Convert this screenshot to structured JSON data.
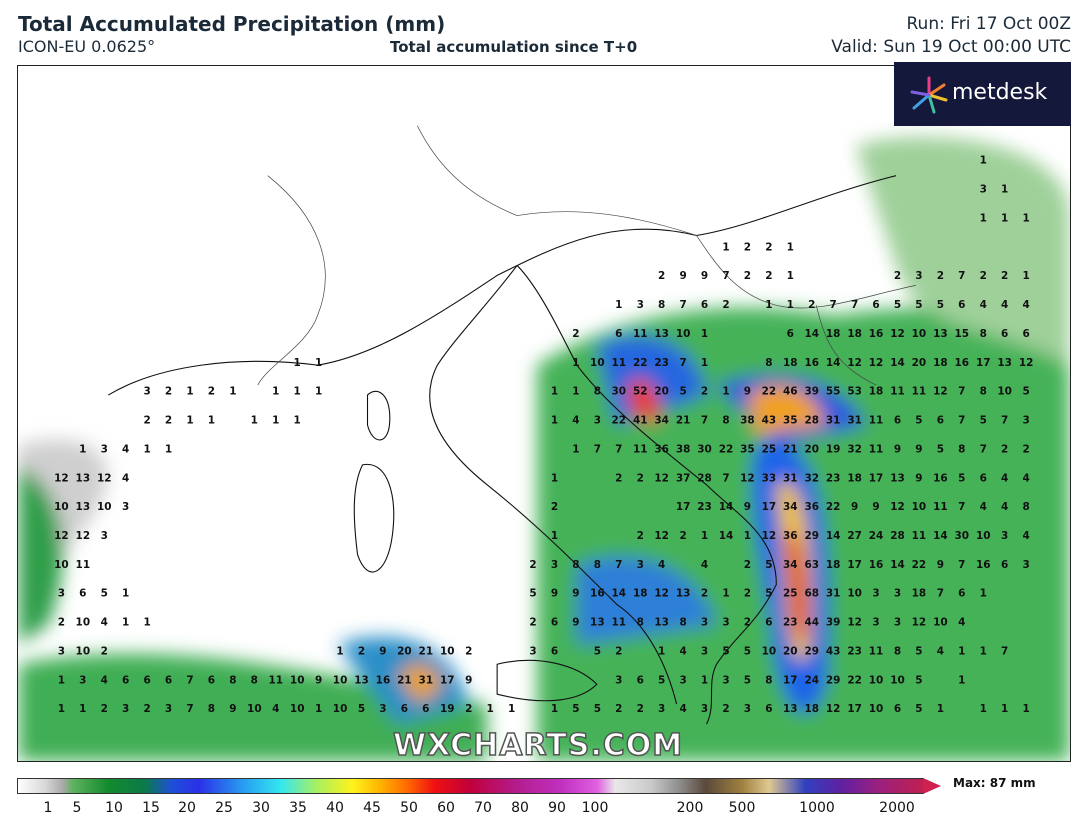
{
  "header": {
    "title": "Total Accumulated Precipitation (mm)",
    "model": "ICON-EU 0.0625°",
    "subtitle": "Total accumulation since T+0",
    "run": "Run: Fri 17 Oct 00Z",
    "valid": "Valid: Sun 19 Oct 00:00 UTC"
  },
  "logo": "metdesk",
  "watermark": "WXCHARTS.COM",
  "legend": {
    "labels": [
      1,
      5,
      10,
      15,
      20,
      25,
      30,
      35,
      40,
      45,
      50,
      60,
      70,
      80,
      90,
      100,
      200,
      500,
      1000,
      2000
    ],
    "max_label": "Max: 87 mm"
  },
  "grid": {
    "rows": [
      [
        null,
        null,
        null,
        null,
        null,
        null,
        null,
        null,
        null,
        null,
        null,
        null,
        null,
        null,
        null,
        null,
        null,
        null,
        null,
        null,
        null,
        null,
        null,
        null,
        null,
        null,
        null,
        null,
        null,
        null,
        null,
        null,
        null,
        null,
        null,
        null,
        null,
        null,
        null,
        null,
        null,
        null,
        null,
        1,
        null,
        null
      ],
      [
        null,
        null,
        null,
        null,
        null,
        null,
        null,
        null,
        null,
        null,
        null,
        null,
        null,
        null,
        null,
        null,
        null,
        null,
        null,
        null,
        null,
        null,
        null,
        null,
        null,
        null,
        null,
        null,
        null,
        null,
        null,
        null,
        null,
        null,
        null,
        null,
        null,
        null,
        null,
        null,
        null,
        null,
        null,
        3,
        1,
        null
      ],
      [
        null,
        null,
        null,
        null,
        null,
        null,
        null,
        null,
        null,
        null,
        null,
        null,
        null,
        null,
        null,
        null,
        null,
        null,
        null,
        null,
        null,
        null,
        null,
        null,
        null,
        null,
        null,
        null,
        null,
        null,
        null,
        null,
        null,
        null,
        null,
        null,
        null,
        null,
        null,
        null,
        null,
        null,
        null,
        1,
        1,
        1
      ],
      [
        null,
        null,
        null,
        null,
        null,
        null,
        null,
        null,
        null,
        null,
        null,
        null,
        null,
        null,
        null,
        null,
        null,
        null,
        null,
        null,
        null,
        null,
        null,
        null,
        null,
        null,
        null,
        null,
        null,
        null,
        null,
        1,
        2,
        2,
        1,
        null,
        null,
        null,
        null,
        null,
        null,
        null,
        null,
        null,
        null,
        null
      ],
      [
        null,
        null,
        null,
        null,
        null,
        null,
        null,
        null,
        null,
        null,
        null,
        null,
        null,
        null,
        null,
        null,
        null,
        null,
        null,
        null,
        null,
        null,
        null,
        null,
        null,
        null,
        null,
        null,
        2,
        9,
        9,
        7,
        2,
        2,
        1,
        null,
        null,
        null,
        null,
        2,
        3,
        2,
        7,
        2,
        2,
        1
      ],
      [
        null,
        null,
        null,
        null,
        null,
        null,
        null,
        null,
        null,
        null,
        null,
        null,
        null,
        null,
        null,
        null,
        null,
        null,
        null,
        null,
        null,
        null,
        null,
        null,
        null,
        null,
        1,
        3,
        8,
        7,
        6,
        2,
        null,
        1,
        1,
        2,
        7,
        7,
        6,
        5,
        5,
        5,
        6,
        4,
        4,
        4
      ],
      [
        null,
        null,
        null,
        null,
        null,
        null,
        null,
        null,
        null,
        null,
        null,
        null,
        null,
        null,
        null,
        null,
        null,
        null,
        null,
        null,
        null,
        null,
        null,
        null,
        2,
        null,
        6,
        11,
        13,
        10,
        1,
        null,
        null,
        null,
        6,
        14,
        18,
        18,
        16,
        12,
        10,
        13,
        15,
        8,
        6,
        6
      ],
      [
        null,
        null,
        null,
        null,
        null,
        null,
        null,
        null,
        null,
        null,
        null,
        1,
        1,
        null,
        null,
        null,
        null,
        null,
        null,
        null,
        null,
        null,
        null,
        null,
        1,
        10,
        11,
        22,
        23,
        7,
        1,
        null,
        null,
        8,
        18,
        16,
        14,
        12,
        12,
        14,
        20,
        18,
        16,
        17,
        13,
        12
      ],
      [
        null,
        null,
        null,
        null,
        3,
        2,
        1,
        2,
        1,
        null,
        1,
        1,
        1,
        null,
        null,
        null,
        null,
        null,
        null,
        null,
        null,
        null,
        null,
        1,
        1,
        8,
        30,
        52,
        20,
        5,
        2,
        1,
        9,
        22,
        46,
        39,
        55,
        53,
        18,
        11,
        11,
        12,
        7,
        8,
        10,
        5
      ],
      [
        null,
        null,
        null,
        null,
        2,
        2,
        1,
        1,
        null,
        1,
        1,
        1,
        null,
        null,
        null,
        null,
        null,
        null,
        null,
        null,
        null,
        null,
        null,
        1,
        4,
        3,
        22,
        41,
        34,
        21,
        7,
        8,
        38,
        43,
        35,
        28,
        31,
        31,
        11,
        6,
        5,
        6,
        7,
        5,
        7,
        3
      ],
      [
        null,
        1,
        3,
        4,
        1,
        1,
        null,
        null,
        null,
        null,
        null,
        null,
        null,
        null,
        null,
        null,
        null,
        null,
        null,
        null,
        null,
        null,
        null,
        null,
        1,
        7,
        7,
        11,
        36,
        38,
        30,
        22,
        35,
        25,
        21,
        20,
        19,
        32,
        11,
        9,
        9,
        5,
        8,
        7,
        2,
        2
      ],
      [
        12,
        13,
        12,
        4,
        null,
        null,
        null,
        null,
        null,
        null,
        null,
        null,
        null,
        null,
        null,
        null,
        null,
        null,
        null,
        null,
        null,
        null,
        null,
        1,
        null,
        null,
        2,
        2,
        12,
        37,
        28,
        7,
        12,
        33,
        31,
        32,
        23,
        18,
        17,
        13,
        9,
        16,
        5,
        6,
        4,
        4
      ],
      [
        10,
        13,
        10,
        3,
        null,
        null,
        null,
        null,
        null,
        null,
        null,
        null,
        null,
        null,
        null,
        null,
        null,
        null,
        null,
        null,
        null,
        null,
        null,
        2,
        null,
        null,
        null,
        null,
        null,
        17,
        23,
        14,
        9,
        17,
        34,
        36,
        22,
        9,
        9,
        12,
        10,
        11,
        7,
        4,
        4,
        8
      ],
      [
        12,
        12,
        3,
        null,
        null,
        null,
        null,
        null,
        null,
        null,
        null,
        null,
        null,
        null,
        null,
        null,
        null,
        null,
        null,
        null,
        null,
        null,
        null,
        1,
        null,
        null,
        null,
        2,
        12,
        2,
        1,
        14,
        1,
        12,
        36,
        29,
        14,
        27,
        24,
        28,
        11,
        14,
        30,
        10,
        3,
        4
      ],
      [
        10,
        11,
        null,
        null,
        null,
        null,
        null,
        null,
        null,
        null,
        null,
        null,
        null,
        null,
        null,
        null,
        null,
        null,
        null,
        null,
        null,
        null,
        2,
        3,
        8,
        8,
        7,
        3,
        4,
        null,
        4,
        null,
        2,
        5,
        34,
        63,
        18,
        17,
        16,
        14,
        22,
        9,
        7,
        16,
        6,
        3
      ],
      [
        3,
        6,
        5,
        1,
        null,
        null,
        null,
        null,
        null,
        null,
        null,
        null,
        null,
        null,
        null,
        null,
        null,
        null,
        null,
        null,
        null,
        null,
        5,
        9,
        9,
        16,
        14,
        18,
        12,
        13,
        2,
        1,
        2,
        5,
        25,
        68,
        31,
        10,
        3,
        3,
        18,
        7,
        6,
        1,
        null,
        null
      ],
      [
        2,
        10,
        4,
        1,
        1,
        null,
        null,
        null,
        null,
        null,
        null,
        null,
        null,
        null,
        null,
        null,
        null,
        null,
        null,
        null,
        null,
        null,
        2,
        6,
        9,
        13,
        11,
        8,
        13,
        8,
        3,
        3,
        2,
        6,
        23,
        44,
        39,
        12,
        3,
        3,
        12,
        10,
        4,
        null,
        null,
        null
      ],
      [
        3,
        10,
        2,
        null,
        null,
        null,
        null,
        null,
        null,
        null,
        null,
        null,
        null,
        1,
        2,
        9,
        20,
        21,
        10,
        2,
        null,
        null,
        3,
        6,
        null,
        5,
        2,
        null,
        1,
        4,
        3,
        5,
        5,
        10,
        20,
        29,
        43,
        23,
        11,
        8,
        5,
        4,
        1,
        1,
        7,
        null
      ],
      [
        1,
        3,
        4,
        6,
        6,
        6,
        7,
        6,
        8,
        8,
        11,
        10,
        9,
        10,
        13,
        16,
        21,
        31,
        17,
        9,
        null,
        null,
        null,
        null,
        null,
        null,
        3,
        6,
        5,
        3,
        1,
        3,
        5,
        8,
        17,
        24,
        29,
        22,
        10,
        10,
        5,
        null,
        1,
        null,
        null,
        null
      ],
      [
        1,
        1,
        2,
        3,
        2,
        3,
        7,
        8,
        9,
        10,
        4,
        10,
        1,
        10,
        5,
        3,
        6,
        6,
        19,
        2,
        1,
        1,
        null,
        1,
        5,
        5,
        2,
        2,
        3,
        4,
        3,
        2,
        3,
        6,
        13,
        18,
        12,
        17,
        10,
        6,
        5,
        1,
        null,
        1,
        1,
        1
      ]
    ]
  }
}
